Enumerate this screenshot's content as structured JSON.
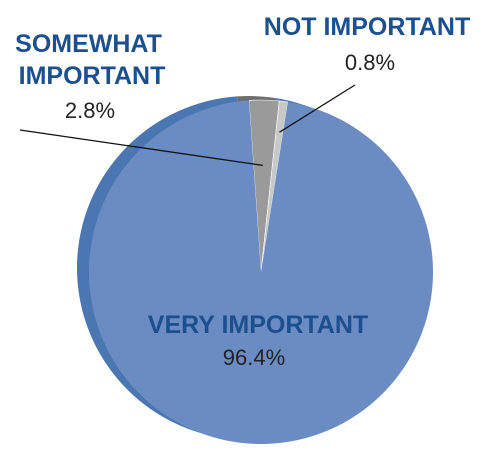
{
  "chart_data": {
    "type": "pie",
    "categories": [
      "VERY IMPORTANT",
      "SOMEWHAT IMPORTANT",
      "NOT IMPORTANT"
    ],
    "values": [
      96.4,
      2.8,
      0.8
    ],
    "value_labels": [
      "96.4%",
      "2.8%",
      "0.8%"
    ],
    "label_lines": {
      "SOMEWHAT IMPORTANT": [
        "SOMEWHAT",
        "IMPORTANT"
      ]
    },
    "legend": "none",
    "style": "3d",
    "colors": {
      "VERY IMPORTANT": "#6a8cc3",
      "SOMEWHAT IMPORTANT": "#9a9a9a",
      "NOT IMPORTANT": "#c8c8c8",
      "depth": "#4a77b2",
      "label_text": "#1b4f8e",
      "value_text": "#222222"
    }
  }
}
